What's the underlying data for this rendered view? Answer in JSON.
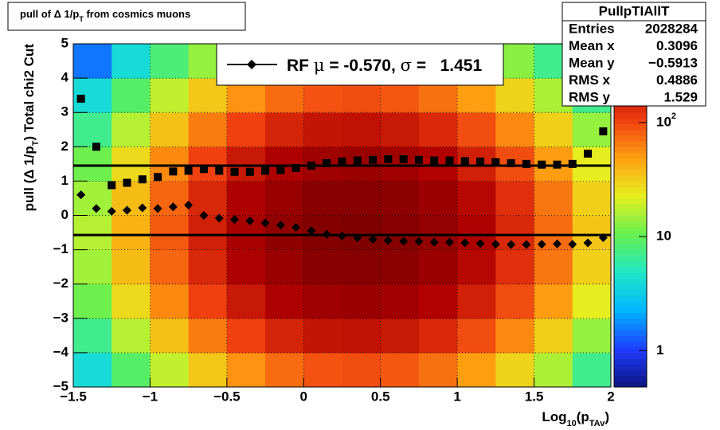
{
  "chart_data": {
    "type": "histogram2d",
    "title": [
      "pull of Δ 1/p",
      "T",
      " from cosmics muons"
    ],
    "xlabel": [
      "Log",
      "10",
      "(p",
      "TAv",
      ")"
    ],
    "ylabel": [
      "pull (Δ 1/p",
      "T",
      ")  Total chi2 Cut"
    ],
    "xlim": [
      -1.5,
      2
    ],
    "ylim": [
      -5,
      5
    ],
    "xticks": [
      {
        "value": -1.5,
        "label": "−1.5"
      },
      {
        "value": -1,
        "label": "−1"
      },
      {
        "value": -0.5,
        "label": "−0.5"
      },
      0,
      0.5,
      1,
      1.5,
      2
    ],
    "yticks": [
      {
        "value": -5,
        "label": "−5"
      },
      {
        "value": -4,
        "label": "−4"
      },
      {
        "value": -3,
        "label": "−3"
      },
      {
        "value": -2,
        "label": "−2"
      },
      {
        "value": -1,
        "label": "−1"
      },
      0,
      1,
      2,
      3,
      4,
      5
    ],
    "grid": true,
    "zlog": true,
    "zlim": [
      0.48,
      490
    ],
    "zticks": [
      1,
      10,
      {
        "value": 100,
        "label": "10",
        "sup": "2"
      }
    ],
    "palette": [
      "#0c1480",
      "#1f3cff",
      "#00b4ff",
      "#1ee8c8",
      "#64f050",
      "#e6f020",
      "#ffa010",
      "#f04010",
      "#b00000",
      "#780000"
    ],
    "xbins": [
      -1.5,
      -1.25,
      -1,
      -0.75,
      -0.5,
      -0.25,
      0,
      0.25,
      0.5,
      0.75,
      1,
      1.25,
      1.5,
      1.75,
      2
    ],
    "ybins": [
      -5,
      -4,
      -3,
      -2,
      -1,
      0,
      1,
      2,
      3,
      4,
      5
    ],
    "z": [
      [
        4,
        9,
        18,
        33,
        54,
        74,
        91,
        95,
        87,
        71,
        49,
        30,
        16,
        7
      ],
      [
        7,
        17,
        35,
        65,
        105,
        145,
        178,
        186,
        170,
        138,
        95,
        59,
        31,
        14
      ],
      [
        11,
        28,
        58,
        105,
        170,
        234,
        288,
        302,
        275,
        224,
        155,
        95,
        50,
        23
      ],
      [
        15,
        37,
        78,
        141,
        229,
        316,
        389,
        407,
        372,
        302,
        209,
        129,
        68,
        31
      ],
      [
        17,
        41,
        85,
        155,
        251,
        347,
        427,
        447,
        407,
        331,
        229,
        141,
        74,
        34
      ],
      [
        15,
        37,
        78,
        141,
        229,
        316,
        389,
        407,
        372,
        302,
        209,
        129,
        68,
        31
      ],
      [
        11,
        28,
        58,
        105,
        170,
        234,
        288,
        302,
        275,
        224,
        155,
        95,
        50,
        23
      ],
      [
        7,
        17,
        35,
        65,
        105,
        145,
        178,
        186,
        170,
        138,
        95,
        59,
        31,
        14
      ],
      [
        4,
        9,
        18,
        33,
        54,
        74,
        91,
        95,
        87,
        71,
        49,
        30,
        16,
        7
      ],
      [
        1.5,
        4,
        8,
        14,
        22,
        31,
        38,
        40,
        36,
        30,
        20,
        13,
        7,
        3
      ]
    ],
    "x": [
      -1.45,
      -1.35,
      -1.25,
      -1.15,
      -1.05,
      -0.95,
      -0.85,
      -0.75,
      -0.65,
      -0.55,
      -0.45,
      -0.35,
      -0.25,
      -0.15,
      -0.05,
      0.05,
      0.15,
      0.25,
      0.35,
      0.45,
      0.55,
      0.65,
      0.75,
      0.85,
      0.95,
      1.05,
      1.15,
      1.25,
      1.35,
      1.45,
      1.55,
      1.65,
      1.75,
      1.85,
      1.95
    ],
    "series": [
      {
        "marker": "diamond",
        "color": "#000000",
        "values": [
          0.6,
          0.2,
          0.12,
          0.15,
          0.22,
          0.2,
          0.25,
          0.3,
          0.0,
          -0.08,
          -0.12,
          -0.16,
          -0.22,
          -0.28,
          -0.35,
          -0.45,
          -0.55,
          -0.6,
          -0.65,
          -0.7,
          -0.73,
          -0.75,
          -0.76,
          -0.78,
          -0.78,
          -0.8,
          -0.82,
          -0.84,
          -0.85,
          -0.85,
          -0.84,
          -0.83,
          -0.84,
          -0.8,
          -0.65
        ]
      },
      {
        "marker": "square",
        "color": "#000000",
        "values": [
          3.4,
          2.0,
          0.88,
          0.95,
          1.05,
          1.12,
          1.28,
          1.3,
          1.35,
          1.3,
          1.27,
          1.27,
          1.3,
          1.32,
          1.38,
          1.45,
          1.52,
          1.57,
          1.6,
          1.62,
          1.64,
          1.64,
          1.62,
          1.6,
          1.6,
          1.58,
          1.57,
          1.55,
          1.52,
          1.5,
          1.48,
          1.48,
          1.5,
          1.8,
          2.45
        ]
      }
    ],
    "hlines": [
      -0.57,
      1.451
    ],
    "legend": [
      "RF ",
      "μ",
      " = -0.570, ",
      "σ",
      " =   1.451"
    ],
    "stats": {
      "title": "PullpTIAllT",
      "rows": [
        [
          "Entries",
          "2028284"
        ],
        [
          "Mean x",
          "0.3096"
        ],
        [
          "Mean y",
          "−0.5913"
        ],
        [
          "RMS x",
          "0.4886"
        ],
        [
          "RMS y",
          "1.529"
        ]
      ]
    }
  }
}
